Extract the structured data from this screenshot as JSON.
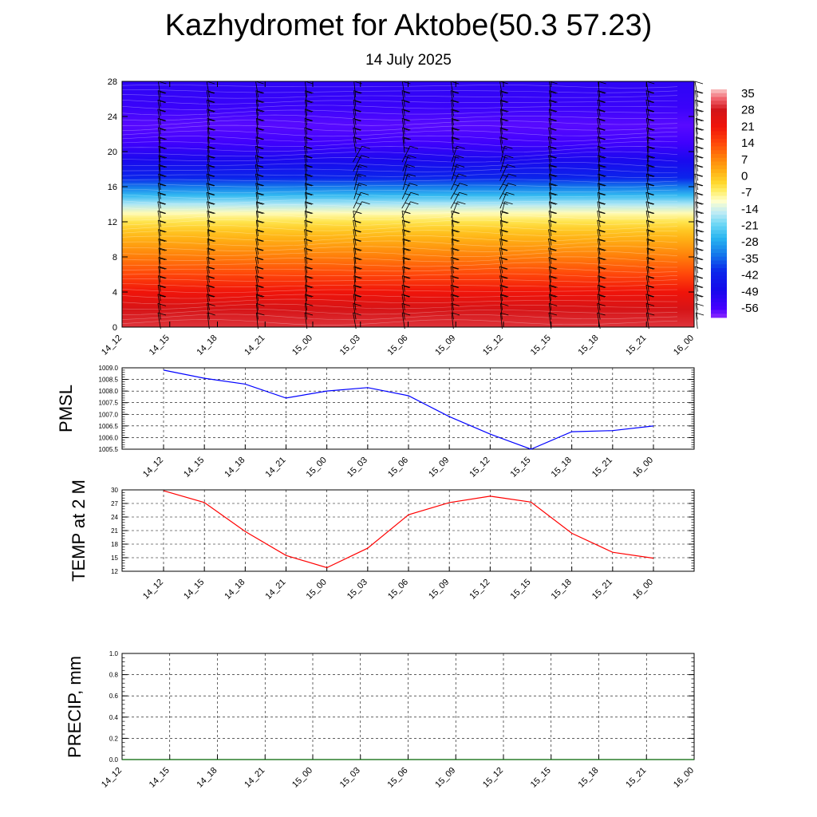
{
  "header": {
    "title": "Kazhydromet for Aktobe(50.3 57.23)",
    "subtitle": "14 July 2025"
  },
  "colors": {
    "pmsl_line": "#0000ff",
    "temp_line": "#ff0000",
    "precip_line": "#006400",
    "grid": "#000000"
  },
  "chart_data": [
    {
      "type": "heatmap",
      "name": "temperature-wind-cross-section",
      "x": [
        "14_12",
        "14_15",
        "14_18",
        "14_21",
        "15_00",
        "15_03",
        "15_06",
        "15_09",
        "15_12",
        "15_15",
        "15_18",
        "15_21",
        "16_00"
      ],
      "yticks": [
        0,
        4,
        8,
        12,
        16,
        20,
        24,
        28
      ],
      "ylim": [
        0,
        28
      ],
      "colorbar": {
        "labels": [
          35,
          28,
          21,
          14,
          7,
          0,
          -7,
          -14,
          -21,
          -28,
          -35,
          -42,
          -49,
          -56
        ],
        "range": [
          -60,
          38
        ]
      },
      "temperature_profile": [
        {
          "level": 0,
          "value": 31
        },
        {
          "level": 2,
          "value": 28
        },
        {
          "level": 4,
          "value": 22
        },
        {
          "level": 6,
          "value": 15
        },
        {
          "level": 8,
          "value": 9
        },
        {
          "level": 10,
          "value": 3
        },
        {
          "level": 11,
          "value": 0
        },
        {
          "level": 12,
          "value": -4
        },
        {
          "level": 13,
          "value": -9
        },
        {
          "level": 14,
          "value": -16
        },
        {
          "level": 15,
          "value": -25
        },
        {
          "level": 16,
          "value": -33
        },
        {
          "level": 17,
          "value": -41
        },
        {
          "level": 19,
          "value": -49
        },
        {
          "level": 21,
          "value": -55
        },
        {
          "level": 23,
          "value": -57
        },
        {
          "level": 25,
          "value": -54
        },
        {
          "level": 28,
          "value": -52
        }
      ]
    },
    {
      "type": "line",
      "name": "pmsl",
      "ylabel": "PMSL",
      "x": [
        "14_12",
        "14_15",
        "14_18",
        "14_21",
        "15_00",
        "15_03",
        "15_06",
        "15_09",
        "15_12",
        "15_15",
        "15_18",
        "15_21",
        "16_00"
      ],
      "values": [
        1008.9,
        1008.55,
        1008.3,
        1007.7,
        1008.0,
        1008.15,
        1007.8,
        1006.9,
        1006.15,
        1005.5,
        1006.25,
        1006.3,
        1006.5
      ],
      "ylim": [
        1005.5,
        1009.0
      ],
      "yticks": [
        "1005.5",
        "1006.0",
        "1006.5",
        "1007.0",
        "1007.5",
        "1008.0",
        "1008.5",
        "1009.0"
      ]
    },
    {
      "type": "line",
      "name": "temp-2m",
      "ylabel": "TEMP at 2 M",
      "x": [
        "14_12",
        "14_15",
        "14_18",
        "14_21",
        "15_00",
        "15_03",
        "15_06",
        "15_09",
        "15_12",
        "15_15",
        "15_18",
        "15_21",
        "16_00"
      ],
      "values": [
        29.8,
        27.2,
        20.8,
        15.5,
        12.8,
        17.1,
        24.5,
        27.2,
        28.6,
        27.3,
        20.4,
        16.2,
        14.9
      ],
      "ylim": [
        12,
        30
      ],
      "yticks": [
        "12",
        "15",
        "18",
        "21",
        "24",
        "27",
        "30"
      ]
    },
    {
      "type": "line",
      "name": "precip",
      "ylabel": "PRECIP, mm",
      "x": [
        "14_12",
        "14_15",
        "14_18",
        "14_21",
        "15_00",
        "15_03",
        "15_06",
        "15_09",
        "15_12",
        "15_15",
        "15_18",
        "15_21",
        "16_00"
      ],
      "values": [
        0,
        0,
        0,
        0,
        0,
        0,
        0,
        0,
        0,
        0,
        0,
        0,
        0
      ],
      "ylim": [
        0,
        1.0
      ],
      "yticks": [
        "0.0",
        "0.2",
        "0.4",
        "0.6",
        "0.8",
        "1.0"
      ]
    }
  ]
}
